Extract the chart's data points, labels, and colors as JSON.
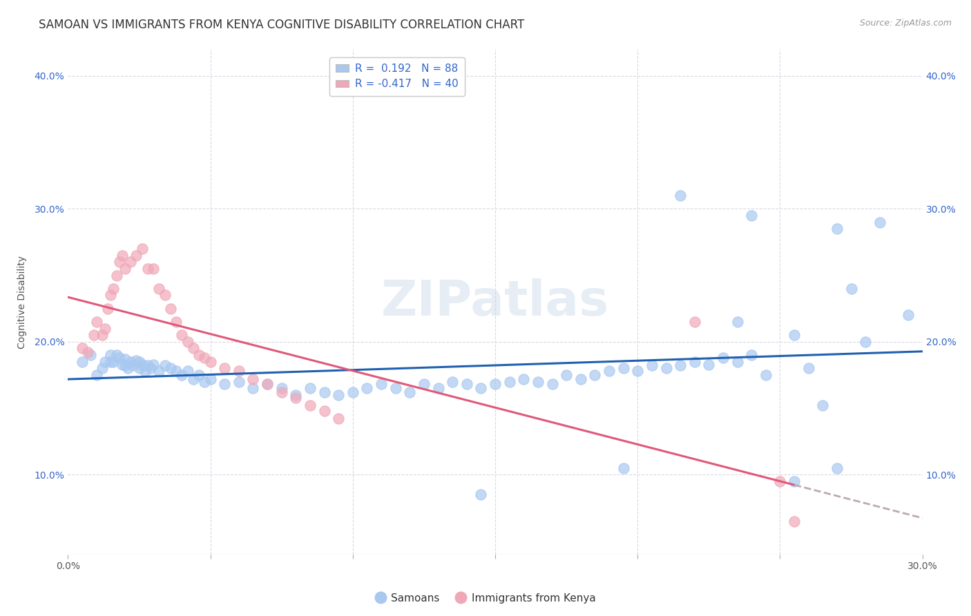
{
  "title": "SAMOAN VS IMMIGRANTS FROM KENYA COGNITIVE DISABILITY CORRELATION CHART",
  "source": "Source: ZipAtlas.com",
  "ylabel": "Cognitive Disability",
  "xlim": [
    0.0,
    0.3
  ],
  "ylim": [
    0.04,
    0.42
  ],
  "xticks": [
    0.0,
    0.05,
    0.1,
    0.15,
    0.2,
    0.25,
    0.3
  ],
  "yticks": [
    0.1,
    0.2,
    0.3,
    0.4
  ],
  "blue_color": "#A8C8F0",
  "pink_color": "#F0A8B8",
  "blue_line_color": "#2060B0",
  "pink_line_color": "#E05878",
  "pink_dashed_color": "#C0A8B0",
  "R_blue": 0.192,
  "N_blue": 88,
  "R_pink": -0.417,
  "N_pink": 40,
  "blue_scatter_x": [
    0.005,
    0.008,
    0.01,
    0.012,
    0.013,
    0.015,
    0.015,
    0.016,
    0.017,
    0.018,
    0.019,
    0.02,
    0.02,
    0.021,
    0.022,
    0.023,
    0.024,
    0.025,
    0.025,
    0.026,
    0.027,
    0.028,
    0.029,
    0.03,
    0.032,
    0.034,
    0.036,
    0.038,
    0.04,
    0.042,
    0.044,
    0.046,
    0.048,
    0.05,
    0.055,
    0.06,
    0.065,
    0.07,
    0.075,
    0.08,
    0.085,
    0.09,
    0.095,
    0.1,
    0.105,
    0.11,
    0.115,
    0.12,
    0.125,
    0.13,
    0.135,
    0.14,
    0.145,
    0.15,
    0.155,
    0.16,
    0.165,
    0.17,
    0.175,
    0.18,
    0.185,
    0.19,
    0.195,
    0.2,
    0.205,
    0.21,
    0.215,
    0.22,
    0.225,
    0.23,
    0.235,
    0.24,
    0.145,
    0.195,
    0.24,
    0.255,
    0.26,
    0.265,
    0.27,
    0.275,
    0.28,
    0.215,
    0.235,
    0.245,
    0.255,
    0.27,
    0.285,
    0.295
  ],
  "blue_scatter_y": [
    0.185,
    0.19,
    0.175,
    0.18,
    0.185,
    0.185,
    0.19,
    0.185,
    0.19,
    0.188,
    0.183,
    0.182,
    0.187,
    0.18,
    0.185,
    0.182,
    0.186,
    0.18,
    0.185,
    0.183,
    0.178,
    0.182,
    0.18,
    0.183,
    0.178,
    0.182,
    0.18,
    0.178,
    0.175,
    0.178,
    0.172,
    0.175,
    0.17,
    0.172,
    0.168,
    0.17,
    0.165,
    0.168,
    0.165,
    0.16,
    0.165,
    0.162,
    0.16,
    0.162,
    0.165,
    0.168,
    0.165,
    0.162,
    0.168,
    0.165,
    0.17,
    0.168,
    0.165,
    0.168,
    0.17,
    0.172,
    0.17,
    0.168,
    0.175,
    0.172,
    0.175,
    0.178,
    0.18,
    0.178,
    0.182,
    0.18,
    0.182,
    0.185,
    0.183,
    0.188,
    0.185,
    0.19,
    0.085,
    0.105,
    0.295,
    0.205,
    0.18,
    0.152,
    0.105,
    0.24,
    0.2,
    0.31,
    0.215,
    0.175,
    0.095,
    0.285,
    0.29,
    0.22
  ],
  "pink_scatter_x": [
    0.005,
    0.007,
    0.009,
    0.01,
    0.012,
    0.013,
    0.014,
    0.015,
    0.016,
    0.017,
    0.018,
    0.019,
    0.02,
    0.022,
    0.024,
    0.026,
    0.028,
    0.03,
    0.032,
    0.034,
    0.036,
    0.038,
    0.04,
    0.042,
    0.044,
    0.046,
    0.048,
    0.05,
    0.055,
    0.06,
    0.065,
    0.07,
    0.075,
    0.08,
    0.085,
    0.09,
    0.095,
    0.22,
    0.25,
    0.255
  ],
  "pink_scatter_y": [
    0.195,
    0.192,
    0.205,
    0.215,
    0.205,
    0.21,
    0.225,
    0.235,
    0.24,
    0.25,
    0.26,
    0.265,
    0.255,
    0.26,
    0.265,
    0.27,
    0.255,
    0.255,
    0.24,
    0.235,
    0.225,
    0.215,
    0.205,
    0.2,
    0.195,
    0.19,
    0.188,
    0.185,
    0.18,
    0.178,
    0.172,
    0.168,
    0.162,
    0.158,
    0.152,
    0.148,
    0.142,
    0.215,
    0.095,
    0.065
  ],
  "background_color": "#FFFFFF",
  "grid_color": "#D8D8E4",
  "title_fontsize": 12,
  "axis_label_fontsize": 10,
  "tick_fontsize": 10,
  "legend_fontsize": 11,
  "watermark_text": "ZIPatlas"
}
